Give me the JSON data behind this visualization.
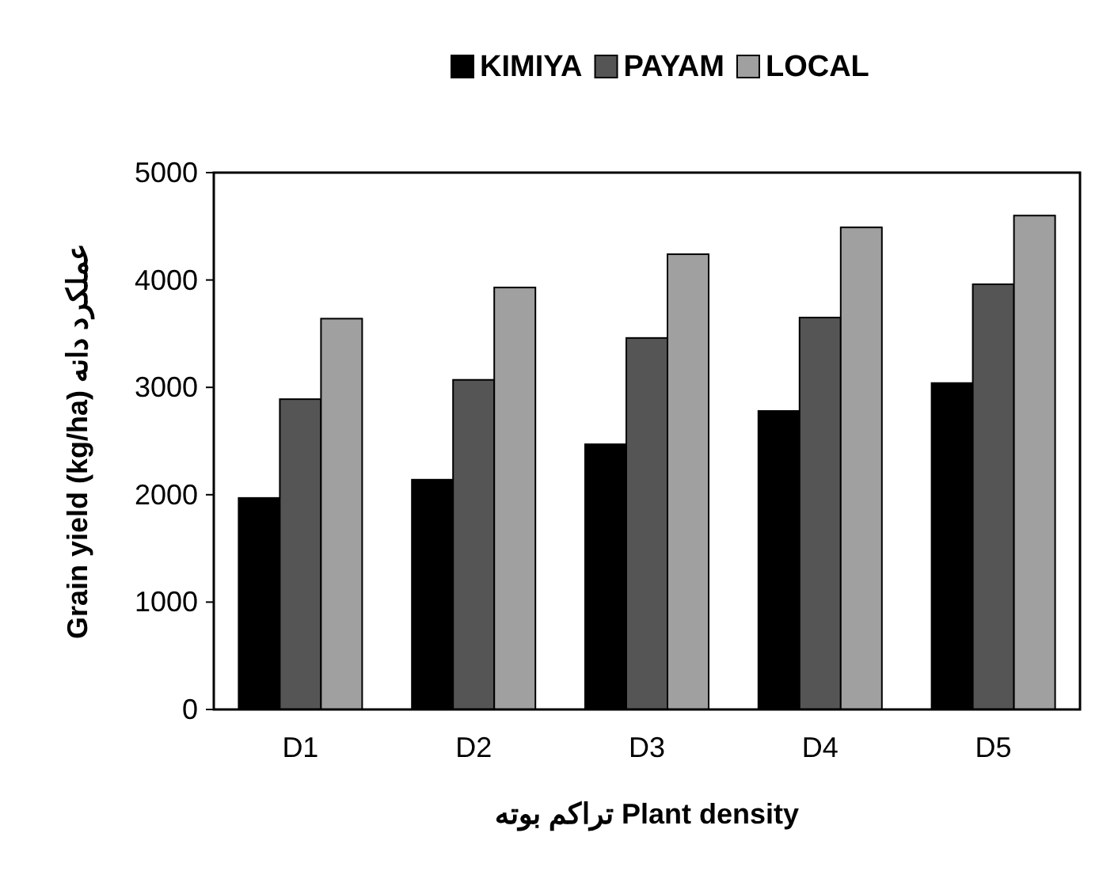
{
  "chart_data": {
    "type": "bar",
    "categories": [
      "D1",
      "D2",
      "D3",
      "D4",
      "D5"
    ],
    "series": [
      {
        "name": "KIMIYA",
        "color": "#000000",
        "values": [
          1970,
          2140,
          2470,
          2780,
          3040
        ]
      },
      {
        "name": "PAYAM",
        "color": "#555555",
        "values": [
          2890,
          3070,
          3460,
          3650,
          3960
        ]
      },
      {
        "name": "LOCAL",
        "color": "#a0a0a0",
        "values": [
          3640,
          3930,
          4240,
          4490,
          4600
        ]
      }
    ],
    "ylim": [
      0,
      5000
    ],
    "yticks": [
      0,
      1000,
      2000,
      3000,
      4000,
      5000
    ],
    "xlabel": "تراکم بوته Plant density",
    "ylabel": "Grain yield (kg/ha) عملکرد دانه",
    "legend": "top",
    "grid": false
  }
}
